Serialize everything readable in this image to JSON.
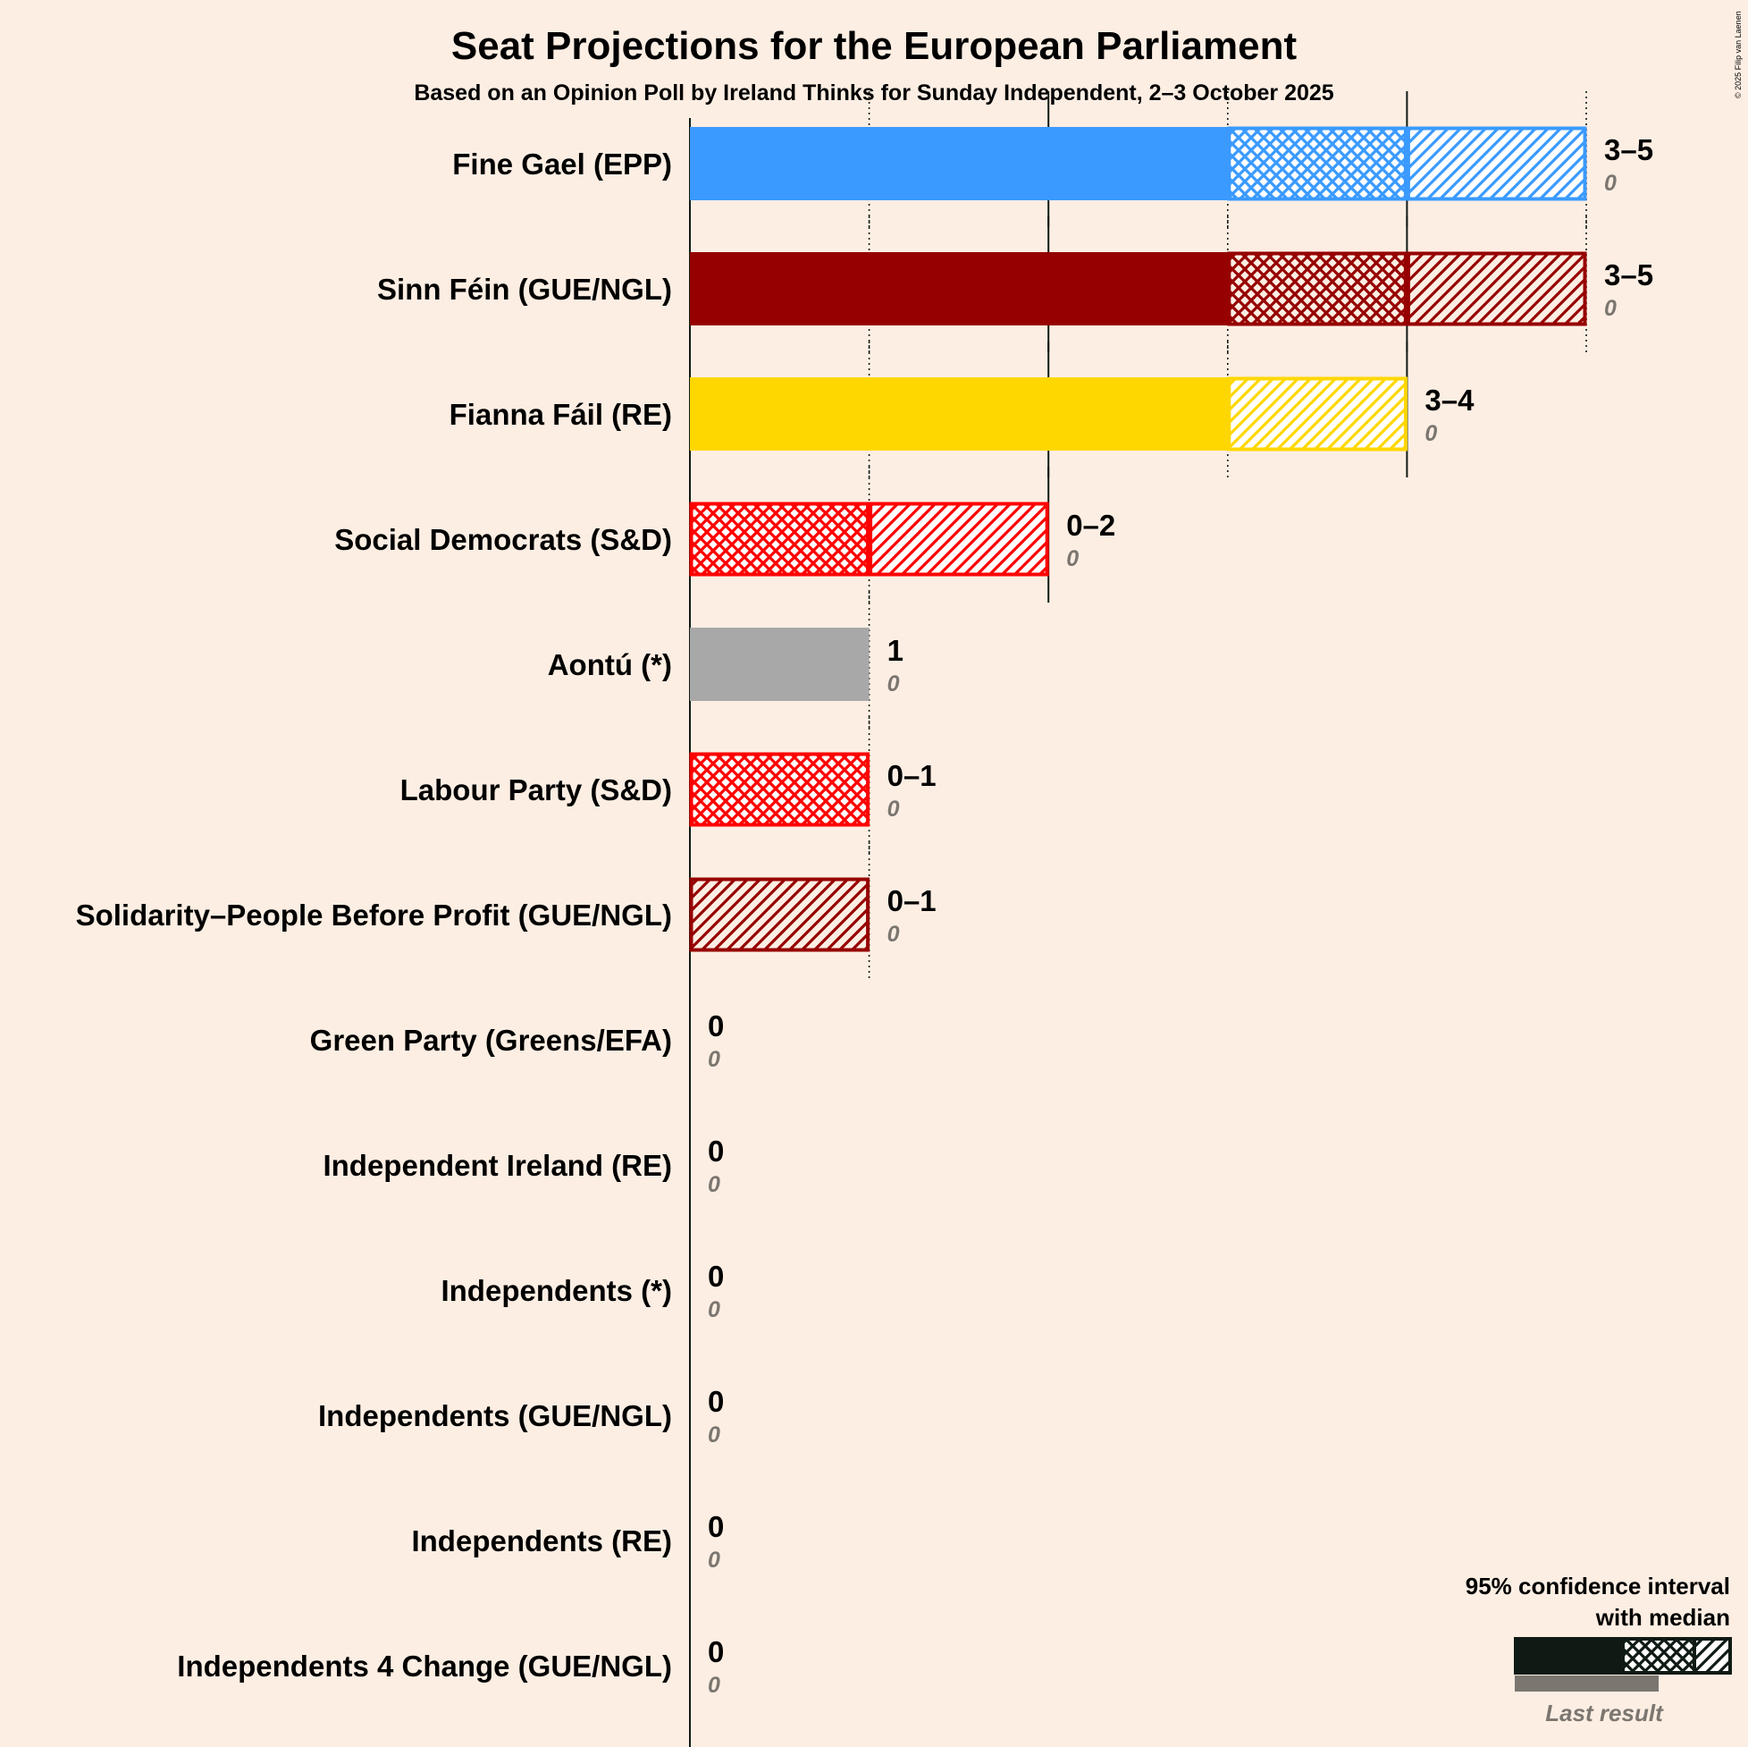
{
  "chart_data": {
    "type": "bar",
    "orientation": "horizontal",
    "title": "Seat Projections for the European Parliament",
    "subtitle": "Based on an Opinion Poll by Ireland Thinks for Sunday Independent, 2–3 October 2025",
    "x_unit": "seats",
    "xlim": [
      0,
      5
    ],
    "gridlines": [
      1,
      2,
      3,
      4,
      5
    ],
    "parties": [
      {
        "name": "Fine Gael (EPP)",
        "low": 3,
        "median": 4,
        "high": 5,
        "last": 0,
        "range_label": "3–5",
        "last_label": "0",
        "color": "#3A9AFF",
        "dark": false
      },
      {
        "name": "Sinn Féin (GUE/NGL)",
        "low": 3,
        "median": 4,
        "high": 5,
        "last": 0,
        "range_label": "3–5",
        "last_label": "0",
        "color": "#960000",
        "dark": true
      },
      {
        "name": "Fianna Fáil (RE)",
        "low": 3,
        "median": 3,
        "high": 4,
        "last": 0,
        "range_label": "3–4",
        "last_label": "0",
        "color": "#FFD700",
        "dark": false
      },
      {
        "name": "Social Democrats (S&D)",
        "low": 0,
        "median": 1,
        "high": 2,
        "last": 0,
        "range_label": "0–2",
        "last_label": "0",
        "color": "#FF0000",
        "dark": false
      },
      {
        "name": "Aontú (*)",
        "low": 1,
        "median": 1,
        "high": 1,
        "last": 0,
        "range_label": "1",
        "last_label": "0",
        "color": "#A8A8A8",
        "dark": false
      },
      {
        "name": "Labour Party (S&D)",
        "low": 0,
        "median": 1,
        "high": 1,
        "last": 0,
        "range_label": "0–1",
        "last_label": "0",
        "color": "#FF0000",
        "dark": false
      },
      {
        "name": "Solidarity–People Before Profit (GUE/NGL)",
        "low": 0,
        "median": 0,
        "high": 1,
        "last": 0,
        "range_label": "0–1",
        "last_label": "0",
        "color": "#960000",
        "dark": true
      },
      {
        "name": "Green Party (Greens/EFA)",
        "low": 0,
        "median": 0,
        "high": 0,
        "last": 0,
        "range_label": "0",
        "last_label": "0",
        "color": "#00A000",
        "dark": false
      },
      {
        "name": "Independent Ireland (RE)",
        "low": 0,
        "median": 0,
        "high": 0,
        "last": 0,
        "range_label": "0",
        "last_label": "0",
        "color": "#FFD700",
        "dark": false
      },
      {
        "name": "Independents (*)",
        "low": 0,
        "median": 0,
        "high": 0,
        "last": 0,
        "range_label": "0",
        "last_label": "0",
        "color": "#A8A8A8",
        "dark": false
      },
      {
        "name": "Independents (GUE/NGL)",
        "low": 0,
        "median": 0,
        "high": 0,
        "last": 0,
        "range_label": "0",
        "last_label": "0",
        "color": "#960000",
        "dark": true
      },
      {
        "name": "Independents (RE)",
        "low": 0,
        "median": 0,
        "high": 0,
        "last": 0,
        "range_label": "0",
        "last_label": "0",
        "color": "#FFD700",
        "dark": false
      },
      {
        "name": "Independents 4 Change (GUE/NGL)",
        "low": 0,
        "median": 0,
        "high": 0,
        "last": 0,
        "range_label": "0",
        "last_label": "0",
        "color": "#960000",
        "dark": true
      }
    ]
  },
  "legend": {
    "line1": "95% confidence interval",
    "line2": "with median",
    "last_result": "Last result"
  },
  "copyright": "© 2025 Filip van Laenen",
  "colors": {
    "background": "#FDEEE3",
    "ink": "#0F1A14",
    "last_result": "#7B7670"
  }
}
